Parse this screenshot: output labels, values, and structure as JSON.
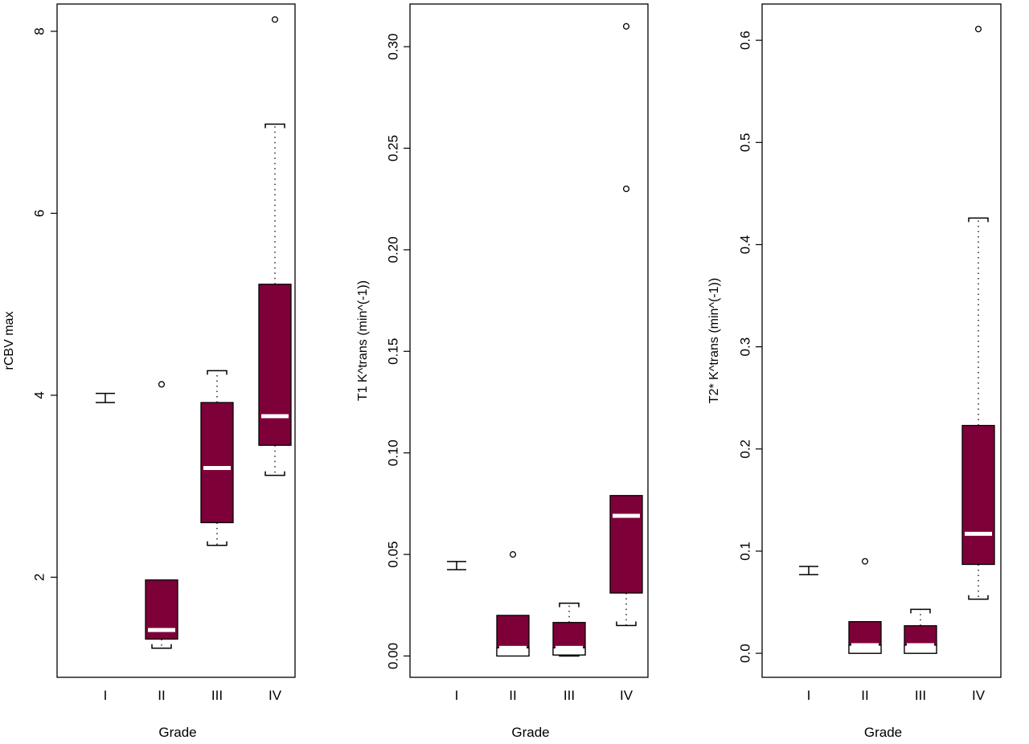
{
  "chart_data": [
    {
      "type": "boxplot",
      "xlabel": "Grade",
      "ylabel": "rCBV max",
      "categories": [
        "I",
        "II",
        "III",
        "IV"
      ],
      "yticks": [
        2,
        4,
        6,
        8
      ],
      "ylim": [
        0.9,
        8.3
      ],
      "fill_color": "#7e0038",
      "median_color": "#ffffff",
      "boxes": [
        {
          "category": "I",
          "min": 3.92,
          "q1": 3.92,
          "median": 4.02,
          "q3": 4.02,
          "max": 4.02,
          "filled": false,
          "outliers": []
        },
        {
          "category": "II",
          "min": 1.22,
          "q1": 1.32,
          "median": 1.42,
          "q3": 1.97,
          "max": 1.97,
          "filled": true,
          "outliers": [
            4.12
          ]
        },
        {
          "category": "III",
          "min": 2.35,
          "q1": 2.6,
          "median": 3.2,
          "q3": 3.92,
          "max": 4.27,
          "filled": true,
          "outliers": []
        },
        {
          "category": "IV",
          "min": 3.12,
          "q1": 3.45,
          "median": 3.77,
          "q3": 5.22,
          "max": 6.98,
          "filled": true,
          "outliers": [
            8.13
          ]
        }
      ]
    },
    {
      "type": "boxplot",
      "xlabel": "Grade",
      "ylabel": "T1 K^trans (min^(-1))",
      "categories": [
        "I",
        "II",
        "III",
        "IV"
      ],
      "yticks": [
        0.0,
        0.05,
        0.1,
        0.15,
        0.2,
        0.25,
        0.3
      ],
      "ytick_labels": [
        "0.00",
        "0.05",
        "0.10",
        "0.15",
        "0.20",
        "0.25",
        "0.30"
      ],
      "ylim": [
        -0.0105,
        0.321
      ],
      "fill_color": "#7e0038",
      "median_color": "#ffffff",
      "boxes": [
        {
          "category": "I",
          "min": 0.0425,
          "q1": 0.0425,
          "median": 0.0465,
          "q3": 0.0465,
          "max": 0.0465,
          "filled": false,
          "outliers": []
        },
        {
          "category": "II",
          "min": 0.0,
          "q1": 0.0,
          "median": 0.004,
          "q3": 0.02,
          "max": 0.02,
          "filled": true,
          "outliers": [
            0.05
          ]
        },
        {
          "category": "III",
          "min": 0.0,
          "q1": 0.0005,
          "median": 0.004,
          "q3": 0.0165,
          "max": 0.026,
          "filled": true,
          "outliers": []
        },
        {
          "category": "IV",
          "min": 0.015,
          "q1": 0.031,
          "median": 0.069,
          "q3": 0.079,
          "max": 0.079,
          "filled": true,
          "outliers": [
            0.23,
            0.31
          ]
        }
      ]
    },
    {
      "type": "boxplot",
      "xlabel": "Grade",
      "ylabel": "T2* K^trans (min^(-1))",
      "categories": [
        "I",
        "II",
        "III",
        "IV"
      ],
      "yticks": [
        0.0,
        0.1,
        0.2,
        0.3,
        0.4,
        0.5,
        0.6
      ],
      "ytick_labels": [
        "0.0",
        "0.1",
        "0.2",
        "0.3",
        "0.4",
        "0.5",
        "0.6"
      ],
      "ylim": [
        -0.0235,
        0.6355
      ],
      "fill_color": "#7e0038",
      "median_color": "#ffffff",
      "boxes": [
        {
          "category": "I",
          "min": 0.077,
          "q1": 0.077,
          "median": 0.085,
          "q3": 0.085,
          "max": 0.085,
          "filled": false,
          "outliers": []
        },
        {
          "category": "II",
          "min": 0.0,
          "q1": 0.0,
          "median": 0.008,
          "q3": 0.031,
          "max": 0.031,
          "filled": true,
          "outliers": [
            0.09
          ]
        },
        {
          "category": "III",
          "min": 0.0,
          "q1": 0.0,
          "median": 0.008,
          "q3": 0.027,
          "max": 0.043,
          "filled": true,
          "outliers": []
        },
        {
          "category": "IV",
          "min": 0.053,
          "q1": 0.087,
          "median": 0.117,
          "q3": 0.223,
          "max": 0.426,
          "filled": true,
          "outliers": [
            0.611
          ]
        }
      ]
    }
  ]
}
